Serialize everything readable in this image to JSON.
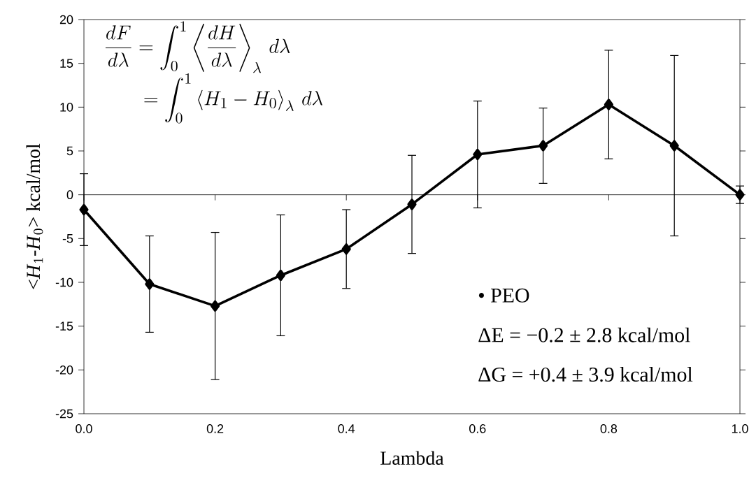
{
  "chart_data": {
    "type": "line",
    "x": [
      0.0,
      0.1,
      0.2,
      0.3,
      0.4,
      0.5,
      0.6,
      0.7,
      0.8,
      0.9,
      1.0
    ],
    "values": [
      -1.7,
      -10.2,
      -12.7,
      -9.2,
      -6.2,
      -1.1,
      4.6,
      5.6,
      10.3,
      5.6,
      0
    ],
    "errors": [
      4.1,
      5.5,
      8.4,
      6.9,
      4.5,
      5.6,
      6.1,
      4.3,
      6.2,
      10.3,
      1.0
    ],
    "color": "#000000",
    "marker": "diamond",
    "line_style": "solid",
    "xlabel": "Lambda",
    "ylabel": "<*H*$_{1}$-*H*$_{0}$> kcal/mol",
    "xlim": [
      0,
      1
    ],
    "ylim": [
      -25,
      20
    ],
    "xticks": [
      {
        "value": 0,
        "label": "0.0"
      },
      {
        "value": 0.2,
        "label": "0.2"
      },
      {
        "value": 0.4,
        "label": "0.4"
      },
      {
        "value": 0.6,
        "label": "0.6"
      },
      {
        "value": 0.8,
        "label": "0.8"
      },
      {
        "value": 1,
        "label": "1.0"
      }
    ],
    "yticks": [
      -25,
      -20,
      -15,
      -10,
      -5,
      0,
      5,
      10,
      15,
      20
    ],
    "ref_lines": [
      {
        "axis": "y",
        "value": 0
      }
    ],
    "grid": false,
    "annotations": [
      "\\frac{dF}{d\\lambda} = \\int_0^1 \\left\\langle \\frac{dH}{d\\lambda} \\right\\rangle_{\\lambda} \\, d\\lambda",
      "= \\int_0^1 \\left\\langle H_1 - H_0 \\right\\rangle_{\\lambda} \\, d\\lambda",
      "•   PEO",
      "ΔE = −0.2 ± 2.8 kcal/mol",
      "ΔG = +0.4 ± 3.9 kcal/mol"
    ]
  }
}
